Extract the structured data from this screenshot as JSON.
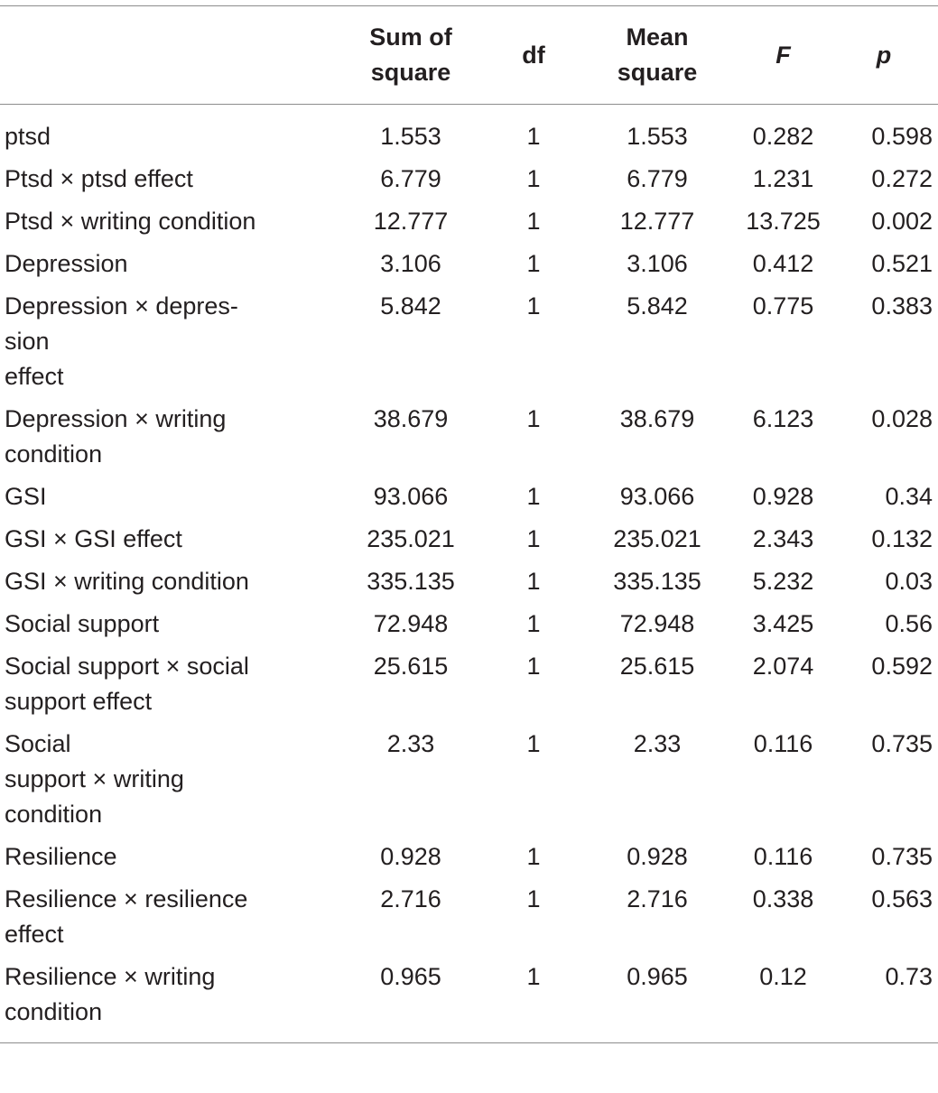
{
  "table": {
    "headers": {
      "effect": "",
      "sum_of_square": [
        "Sum of",
        "square"
      ],
      "df": "df",
      "mean_square": [
        "Mean",
        "square"
      ],
      "f": "F",
      "p": "p"
    },
    "rows": [
      {
        "label": "ptsd",
        "sum_sq": "1.553",
        "df": "1",
        "mean_sq": "1.553",
        "f": "0.282",
        "p": "0.598"
      },
      {
        "label": "Ptsd × ptsd effect",
        "sum_sq": "6.779",
        "df": "1",
        "mean_sq": "6.779",
        "f": "1.231",
        "p": "0.272"
      },
      {
        "label": "Ptsd × writing condition",
        "sum_sq": "12.777",
        "df": "1",
        "mean_sq": "12.777",
        "f": "13.725",
        "p": "0.002"
      },
      {
        "label": "Depression",
        "sum_sq": "3.106",
        "df": "1",
        "mean_sq": "3.106",
        "f": "0.412",
        "p": "0.521"
      },
      {
        "label": "Depression × depres-\nsion\neffect",
        "sum_sq": "5.842",
        "df": "1",
        "mean_sq": "5.842",
        "f": "0.775",
        "p": "0.383"
      },
      {
        "label": "Depression × writing condition",
        "sum_sq": "38.679",
        "df": "1",
        "mean_sq": "38.679",
        "f": "6.123",
        "p": "0.028"
      },
      {
        "label": "GSI",
        "sum_sq": "93.066",
        "df": "1",
        "mean_sq": "93.066",
        "f": "0.928",
        "p": "0.34"
      },
      {
        "label": "GSI × GSI effect",
        "sum_sq": "235.021",
        "df": "1",
        "mean_sq": "235.021",
        "f": "2.343",
        "p": "0.132"
      },
      {
        "label": "GSI × writing condition",
        "sum_sq": "335.135",
        "df": "1",
        "mean_sq": "335.135",
        "f": "5.232",
        "p": "0.03"
      },
      {
        "label": "Social support",
        "sum_sq": "72.948",
        "df": "1",
        "mean_sq": "72.948",
        "f": "3.425",
        "p": "0.56"
      },
      {
        "label": "Social support × social support effect",
        "sum_sq": "25.615",
        "df": "1",
        "mean_sq": "25.615",
        "f": "2.074",
        "p": "0.592"
      },
      {
        "label": "Social\nsupport × writing\ncondition",
        "sum_sq": "2.33",
        "df": "1",
        "mean_sq": "2.33",
        "f": "0.116",
        "p": "0.735"
      },
      {
        "label": "Resilience",
        "sum_sq": "0.928",
        "df": "1",
        "mean_sq": "0.928",
        "f": "0.116",
        "p": "0.735"
      },
      {
        "label": "Resilience × resilience effect",
        "sum_sq": "2.716",
        "df": "1",
        "mean_sq": "2.716",
        "f": "0.338",
        "p": "0.563"
      },
      {
        "label": "Resilience × writing condition",
        "sum_sq": "0.965",
        "df": "1",
        "mean_sq": "0.965",
        "f": "0.12",
        "p": "0.73"
      }
    ]
  }
}
